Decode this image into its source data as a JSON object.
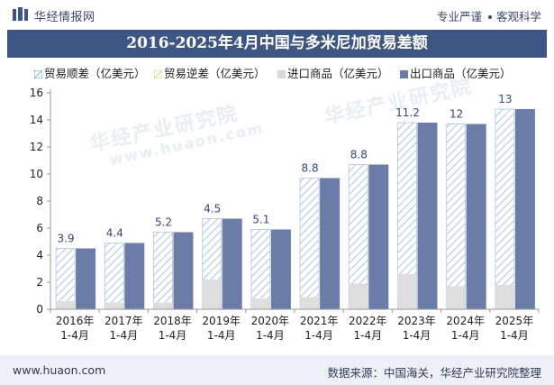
{
  "header": {
    "brand": "华经情报网",
    "slogan_left": "专业严谨",
    "slogan_right": "客观科学"
  },
  "title": "2016-2025年4月中国与多米尼加贸易差额",
  "footer": {
    "site": "www.huaon.com",
    "source": "数据来源：中国海关，华经产业研究院整理"
  },
  "watermark": {
    "text": "华经产业研究院",
    "url": "www.huaon.com"
  },
  "colors": {
    "header_bg": "#3d5683",
    "export": "#6b7da6",
    "import": "#d9d9d9",
    "surplus_hatch": "#8ab4d8",
    "deficit": "#f0d58a"
  },
  "chart_data": {
    "type": "bar",
    "title": "2016-2025年4月中国与多米尼加贸易差额",
    "categories": [
      "2016年\n1-4月",
      "2017年\n1-4月",
      "2018年\n1-4月",
      "2019年\n1-4月",
      "2020年\n1-4月",
      "2021年\n1-4月",
      "2022年\n1-4月",
      "2023年\n1-4月",
      "2024年\n1-4月",
      "2025年\n1-4月"
    ],
    "series": [
      {
        "name": "贸易顺差（亿美元）",
        "values": [
          3.9,
          4.4,
          5.2,
          4.5,
          5.1,
          8.8,
          8.8,
          11.2,
          12,
          13
        ]
      },
      {
        "name": "贸易逆差（亿美元）",
        "values": [
          0,
          0,
          0,
          0,
          0,
          0,
          0,
          0,
          0,
          0
        ]
      },
      {
        "name": "进口商品（亿美元）",
        "values": [
          0.6,
          0.5,
          0.5,
          2.2,
          0.8,
          0.9,
          1.9,
          2.6,
          1.7,
          1.8
        ]
      },
      {
        "name": "出口商品（亿美元）",
        "values": [
          4.5,
          4.9,
          5.7,
          6.7,
          5.9,
          9.7,
          10.7,
          13.8,
          13.7,
          14.8
        ]
      }
    ],
    "data_labels": [
      "3.9",
      "4.4",
      "5.2",
      "4.5",
      "5.1",
      "8.8",
      "8.8",
      "11.2",
      "12",
      "13"
    ],
    "yticks": [
      "0",
      "2",
      "4",
      "6",
      "8",
      "10",
      "12",
      "14",
      "16"
    ],
    "ylim": [
      0,
      16
    ],
    "legend_position": "top",
    "grid": false
  }
}
